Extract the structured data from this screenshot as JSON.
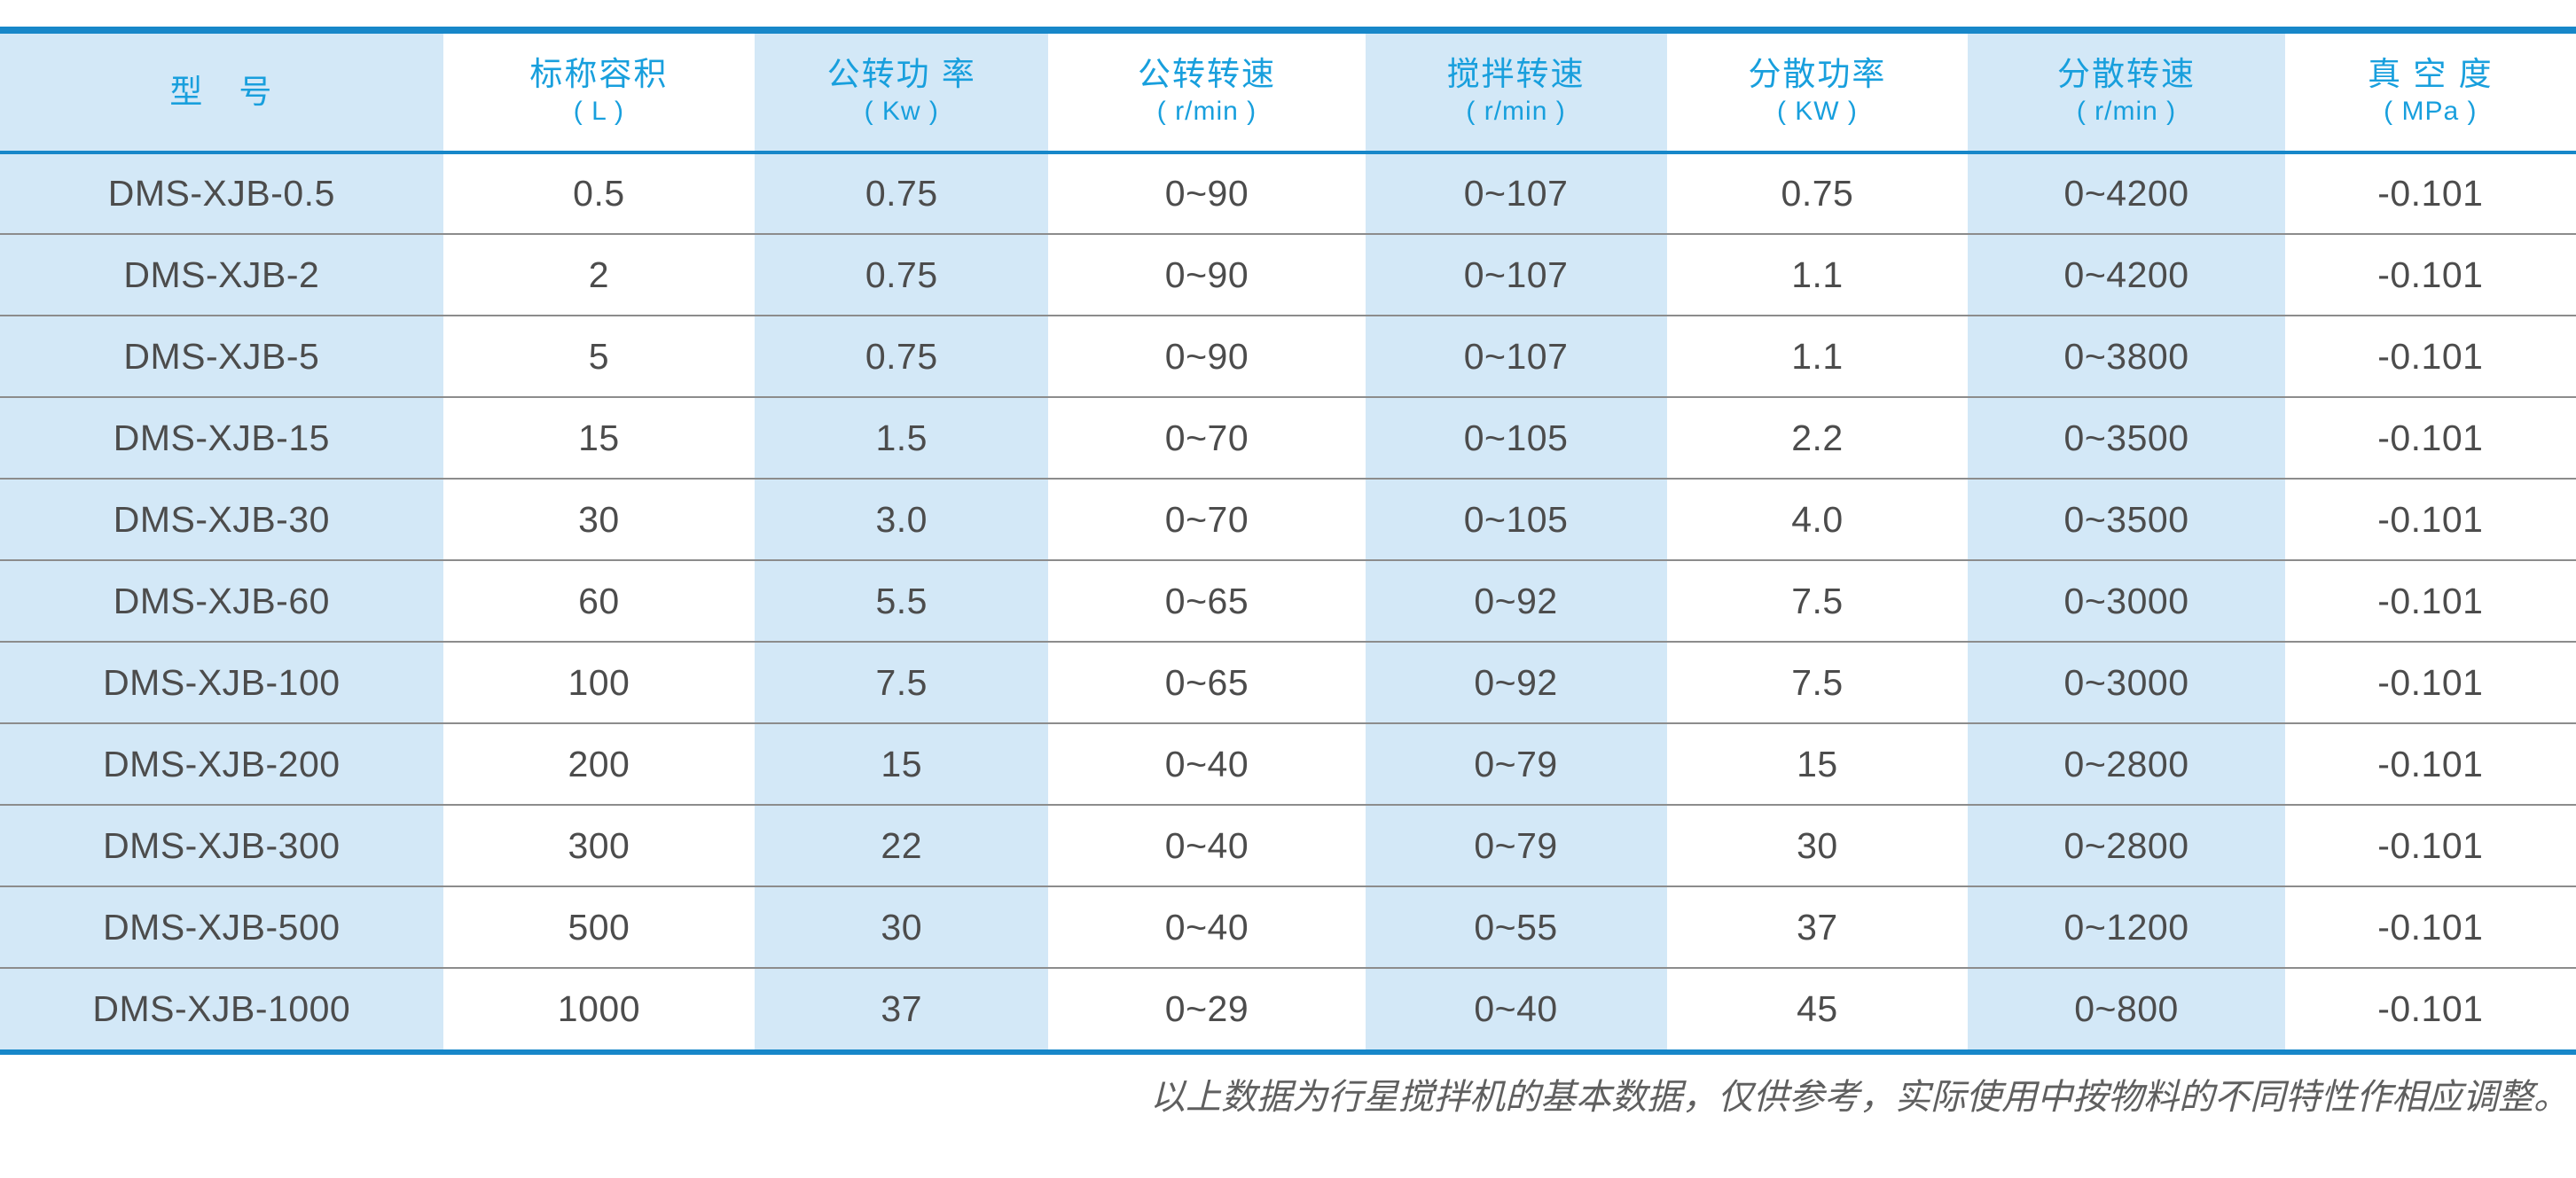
{
  "table": {
    "columns": [
      {
        "title": "型　号",
        "unit": ""
      },
      {
        "title": "标称容积",
        "unit": "( L )"
      },
      {
        "title": "公转功 率",
        "unit": "( Kw )"
      },
      {
        "title": "公转转速",
        "unit": "( r/min )"
      },
      {
        "title": "搅拌转速",
        "unit": "( r/min )"
      },
      {
        "title": "分散功率",
        "unit": "( KW )"
      },
      {
        "title": "分散转速",
        "unit": "( r/min )"
      },
      {
        "title": "真 空 度",
        "unit": "( MPa )"
      }
    ],
    "column_widths_pct": [
      17.2,
      12.1,
      11.4,
      12.3,
      11.7,
      11.7,
      12.3,
      11.3
    ],
    "rows": [
      [
        "DMS-XJB-0.5",
        "0.5",
        "0.75",
        "0~90",
        "0~107",
        "0.75",
        "0~4200",
        "-0.101"
      ],
      [
        "DMS-XJB-2",
        "2",
        "0.75",
        "0~90",
        "0~107",
        "1.1",
        "0~4200",
        "-0.101"
      ],
      [
        "DMS-XJB-5",
        "5",
        "0.75",
        "0~90",
        "0~107",
        "1.1",
        "0~3800",
        "-0.101"
      ],
      [
        "DMS-XJB-15",
        "15",
        "1.5",
        "0~70",
        "0~105",
        "2.2",
        "0~3500",
        "-0.101"
      ],
      [
        "DMS-XJB-30",
        "30",
        "3.0",
        "0~70",
        "0~105",
        "4.0",
        "0~3500",
        "-0.101"
      ],
      [
        "DMS-XJB-60",
        "60",
        "5.5",
        "0~65",
        "0~92",
        "7.5",
        "0~3000",
        "-0.101"
      ],
      [
        "DMS-XJB-100",
        "100",
        "7.5",
        "0~65",
        "0~92",
        "7.5",
        "0~3000",
        "-0.101"
      ],
      [
        "DMS-XJB-200",
        "200",
        "15",
        "0~40",
        "0~79",
        "15",
        "0~2800",
        "-0.101"
      ],
      [
        "DMS-XJB-300",
        "300",
        "22",
        "0~40",
        "0~79",
        "30",
        "0~2800",
        "-0.101"
      ],
      [
        "DMS-XJB-500",
        "500",
        "30",
        "0~40",
        "0~55",
        "37",
        "0~1200",
        "-0.101"
      ],
      [
        "DMS-XJB-1000",
        "1000",
        "37",
        "0~29",
        "0~40",
        "45",
        "0~800",
        "-0.101"
      ]
    ]
  },
  "footer": {
    "note": "以上数据为行星搅拌机的基本数据，仅供参考，实际使用中按物料的不同特性作相应调整。"
  },
  "colors": {
    "line_blue": "#1787c9",
    "header_text": "#189fdd",
    "alt_column_bg": "#d3e8f7",
    "row_separator": "#8c8c8c",
    "data_text": "#4c4c4c",
    "note_text": "#5f5f5f"
  }
}
